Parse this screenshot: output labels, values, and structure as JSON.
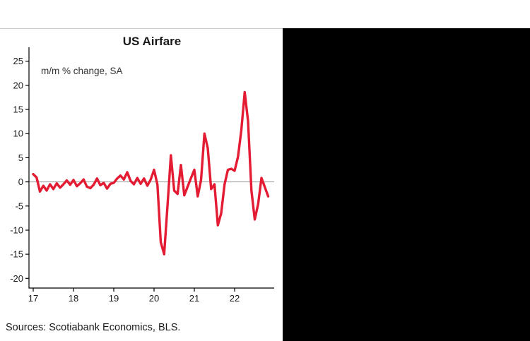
{
  "colors": {
    "line": "#e31b33",
    "axis": "#000000",
    "zero_line": "#9b9b9b",
    "tick_label": "#1a1a1a",
    "side_panel": "#000000"
  },
  "chart_data": {
    "type": "line",
    "title": "US Airfare",
    "annotation": "m/m % change, SA",
    "source": "Sources: Scotiabank Economics, BLS.",
    "x_tick_labels": [
      "17",
      "18",
      "19",
      "20",
      "21",
      "22"
    ],
    "y_ticks": [
      25,
      20,
      15,
      10,
      5,
      0,
      -5,
      -10,
      -15,
      -20
    ],
    "ylim": [
      -20,
      25
    ],
    "grid": "off",
    "legend": "none",
    "line_color": "#e31b33",
    "start_month": "2017-01",
    "frequency": "monthly",
    "series": [
      {
        "name": "US airfare m/m % change (SA)",
        "values": [
          1.6,
          0.9,
          -2.0,
          -0.8,
          -1.8,
          -0.5,
          -1.5,
          -0.3,
          -1.2,
          -0.5,
          0.3,
          -0.6,
          0.4,
          -0.9,
          -0.3,
          0.5,
          -1.0,
          -1.3,
          -0.6,
          0.7,
          -0.7,
          -0.2,
          -1.4,
          -0.4,
          -0.2,
          0.7,
          1.3,
          0.5,
          2.0,
          0.2,
          -0.5,
          0.8,
          -0.4,
          0.7,
          -0.8,
          0.5,
          2.5,
          -0.6,
          -12.5,
          -15.0,
          -5.0,
          5.5,
          -1.8,
          -2.5,
          3.5,
          -2.8,
          -1.0,
          0.8,
          2.5,
          -3.0,
          0.4,
          10.0,
          7.0,
          -1.5,
          -0.5,
          -9.0,
          -6.5,
          -0.5,
          2.5,
          2.7,
          2.3,
          5.2,
          10.7,
          18.6,
          12.6,
          -1.8,
          -7.8,
          -4.6,
          0.8,
          -1.1,
          -3.0
        ]
      }
    ]
  }
}
